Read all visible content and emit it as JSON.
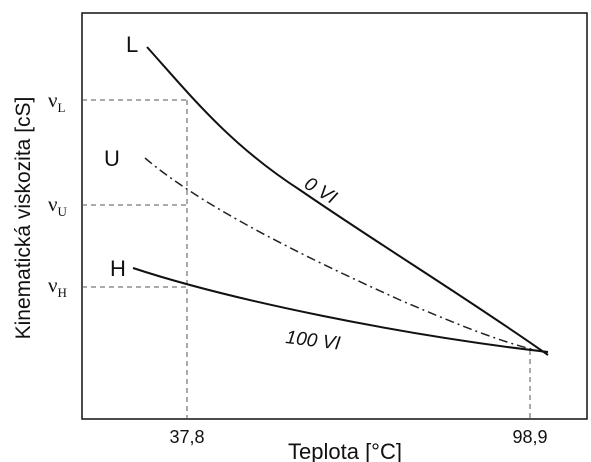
{
  "chart_data": {
    "type": "line",
    "xlabel": "Teplota [°C]",
    "ylabel": "Kinematická viskozita [cS]",
    "xticks": [
      "37,8",
      "98,9"
    ],
    "yticks": [
      {
        "main": "ν",
        "sub": "L"
      },
      {
        "main": "ν",
        "sub": "U"
      },
      {
        "main": "ν",
        "sub": "H"
      }
    ],
    "series": [
      {
        "name": "L",
        "annotation": "0 VI",
        "style": "solid"
      },
      {
        "name": "U",
        "annotation": "",
        "style": "dash-dot"
      },
      {
        "name": "H",
        "annotation": "100 VI",
        "style": "solid"
      }
    ],
    "grid": false
  }
}
